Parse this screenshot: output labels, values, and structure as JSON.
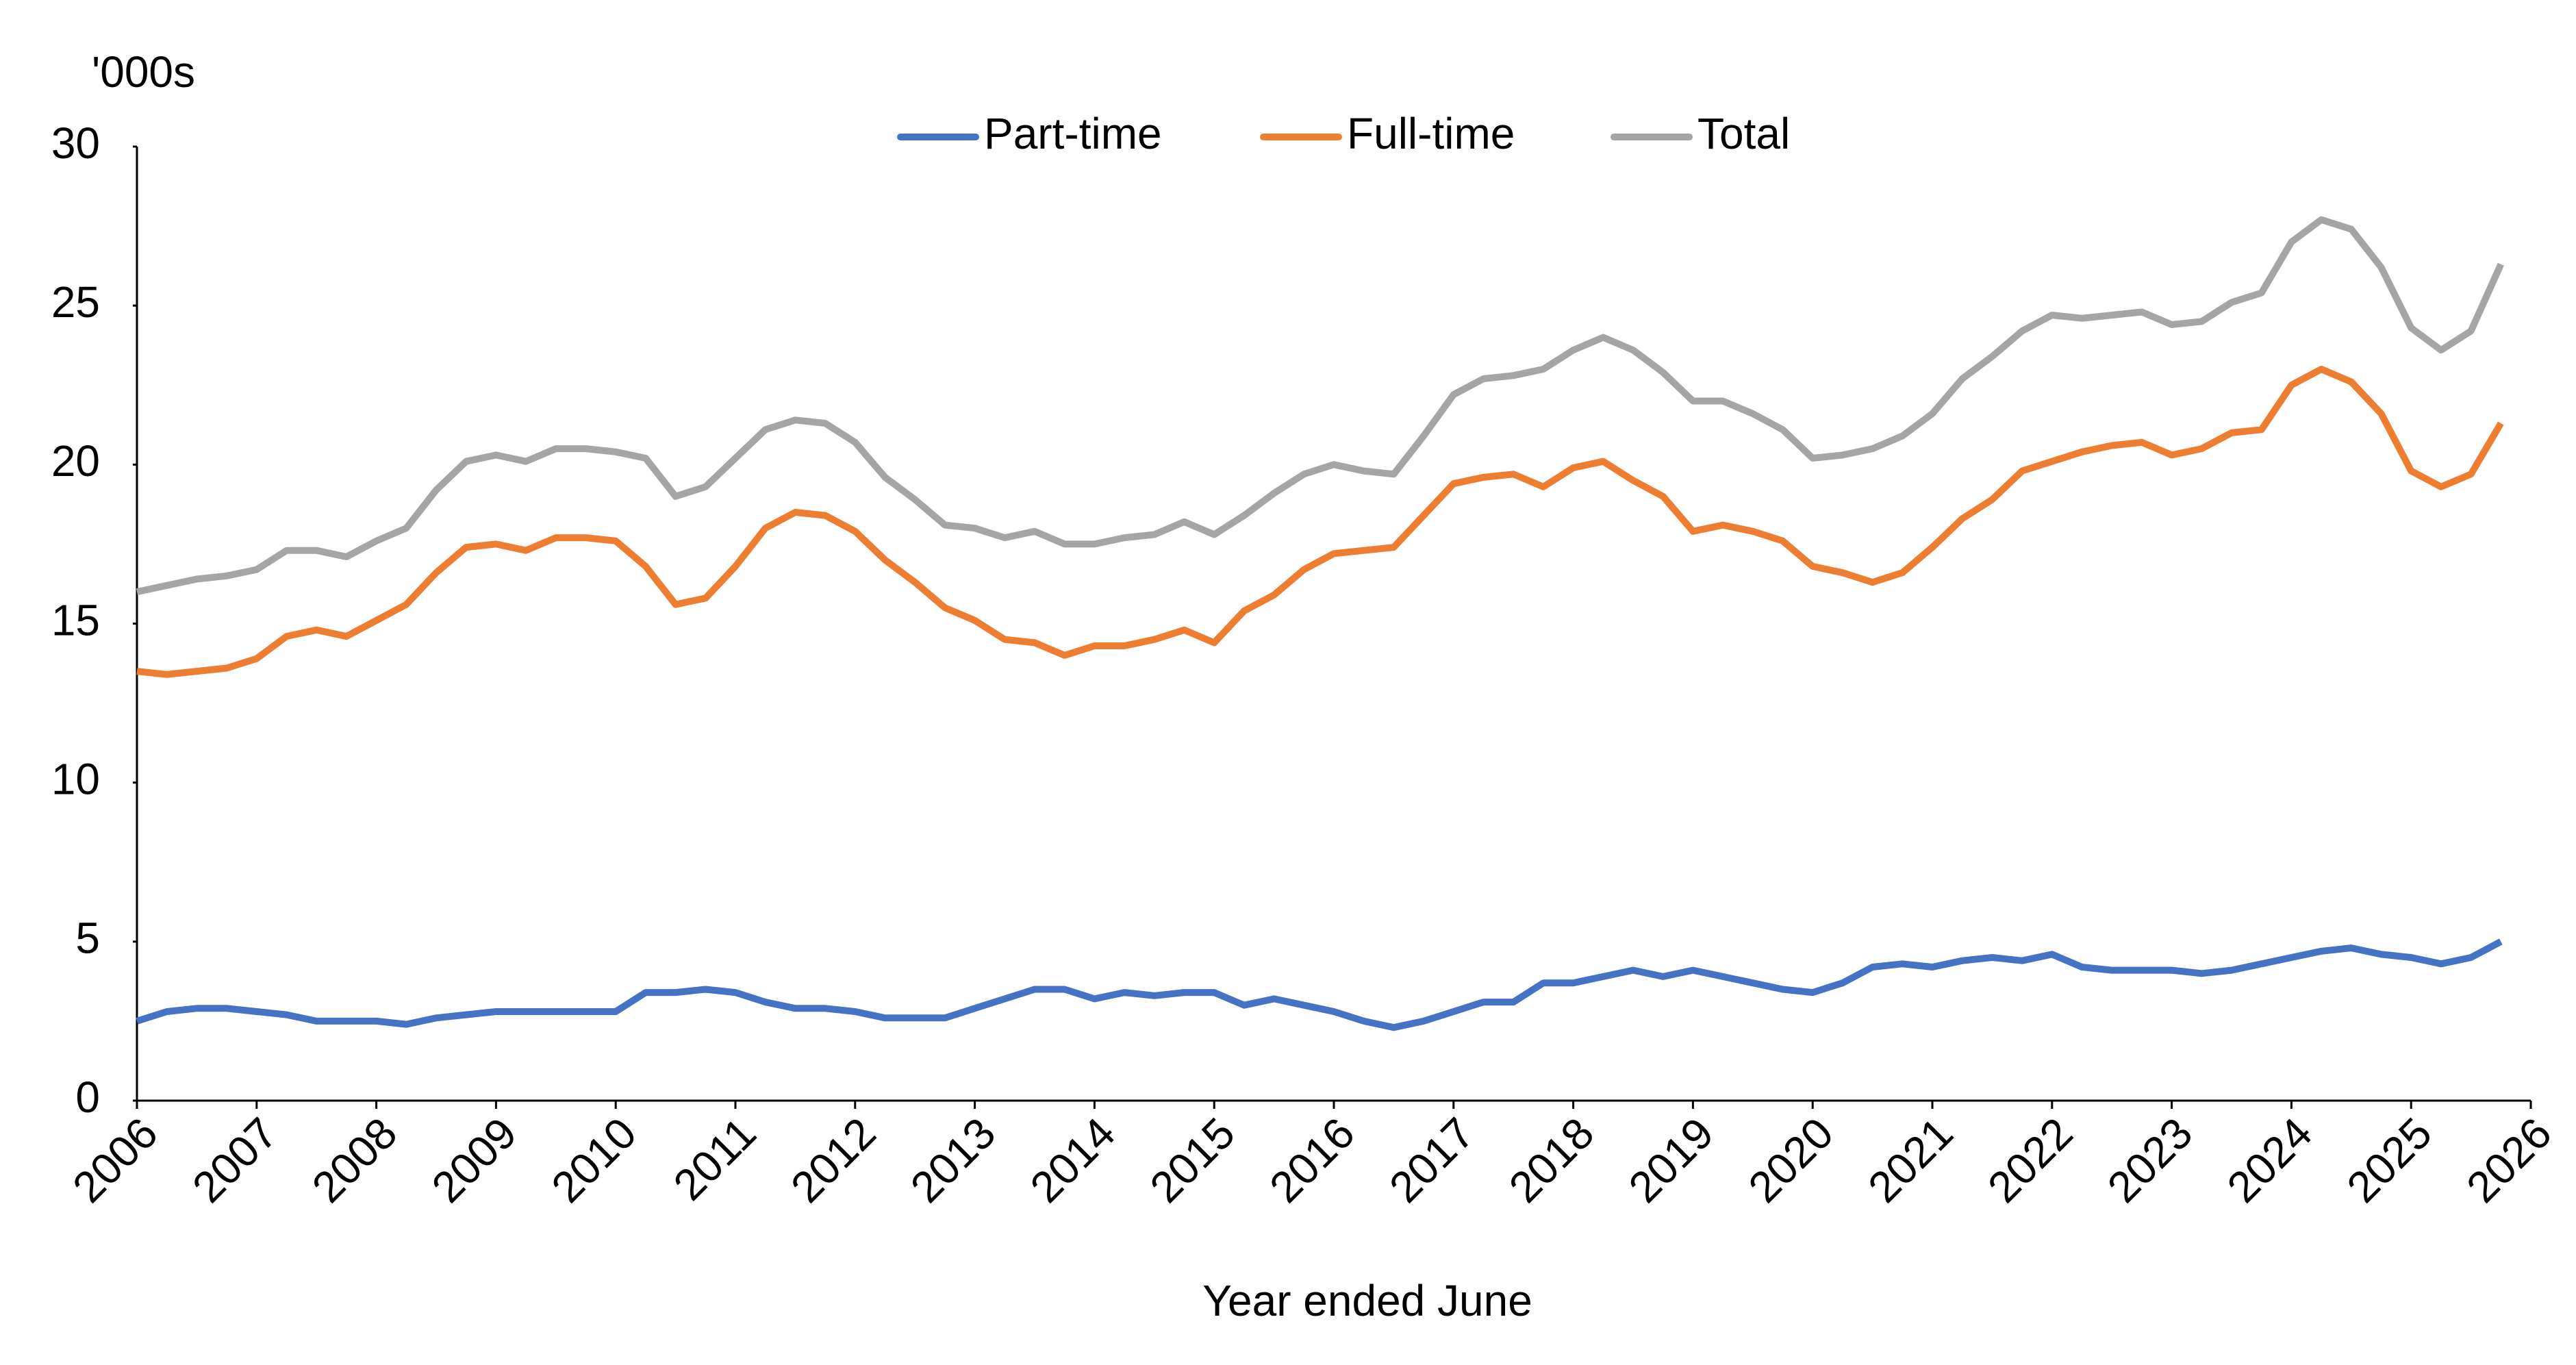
{
  "chart_data": {
    "type": "line",
    "y_axis_unit": "'000s",
    "x_label": "Year ended June",
    "x": [
      2006,
      2006.25,
      2006.5,
      2006.75,
      2007,
      2007.25,
      2007.5,
      2007.75,
      2008,
      2008.25,
      2008.5,
      2008.75,
      2009,
      2009.25,
      2009.5,
      2009.75,
      2010,
      2010.25,
      2010.5,
      2010.75,
      2011,
      2011.25,
      2011.5,
      2011.75,
      2012,
      2012.25,
      2012.5,
      2012.75,
      2013,
      2013.25,
      2013.5,
      2013.75,
      2014,
      2014.25,
      2014.5,
      2014.75,
      2015,
      2015.25,
      2015.5,
      2015.75,
      2016,
      2016.25,
      2016.5,
      2016.75,
      2017,
      2017.25,
      2017.5,
      2017.75,
      2018,
      2018.25,
      2018.5,
      2018.75,
      2019,
      2019.25,
      2019.5,
      2019.75,
      2020,
      2020.25,
      2020.5,
      2020.75,
      2021,
      2021.25,
      2021.5,
      2021.75,
      2022,
      2022.25,
      2022.5,
      2022.75,
      2023,
      2023.25,
      2023.5,
      2023.75,
      2024,
      2024.25,
      2024.5,
      2024.75,
      2025,
      2025.25,
      2025.5,
      2025.75
    ],
    "series": [
      {
        "name": "Part-time",
        "color": "#4472c4",
        "values": [
          2.5,
          2.8,
          2.9,
          2.9,
          2.8,
          2.7,
          2.5,
          2.5,
          2.5,
          2.4,
          2.6,
          2.7,
          2.8,
          2.8,
          2.8,
          2.8,
          2.8,
          3.4,
          3.4,
          3.5,
          3.4,
          3.1,
          2.9,
          2.9,
          2.8,
          2.6,
          2.6,
          2.6,
          2.9,
          3.2,
          3.5,
          3.5,
          3.2,
          3.4,
          3.3,
          3.4,
          3.4,
          3.0,
          3.2,
          3.0,
          2.8,
          2.5,
          2.3,
          2.5,
          2.8,
          3.1,
          3.1,
          3.7,
          3.7,
          3.9,
          4.1,
          3.9,
          4.1,
          3.9,
          3.7,
          3.5,
          3.4,
          3.7,
          4.2,
          4.3,
          4.2,
          4.4,
          4.5,
          4.4,
          4.6,
          4.2,
          4.1,
          4.1,
          4.1,
          4.0,
          4.1,
          4.3,
          4.5,
          4.7,
          4.8,
          4.6,
          4.5,
          4.3,
          4.5,
          5.0
        ]
      },
      {
        "name": "Full-time",
        "color": "#ed7d31",
        "values": [
          13.5,
          13.4,
          13.5,
          13.6,
          13.9,
          14.6,
          14.8,
          14.6,
          15.1,
          15.6,
          16.6,
          17.4,
          17.5,
          17.3,
          17.7,
          17.7,
          17.6,
          16.8,
          15.6,
          15.8,
          16.8,
          18.0,
          18.5,
          18.4,
          17.9,
          17.0,
          16.3,
          15.5,
          15.1,
          14.5,
          14.4,
          14.0,
          14.3,
          14.3,
          14.5,
          14.8,
          14.4,
          15.4,
          15.9,
          16.7,
          17.2,
          17.3,
          17.4,
          18.4,
          19.4,
          19.6,
          19.7,
          19.3,
          19.9,
          20.1,
          19.5,
          19.0,
          17.9,
          18.1,
          17.9,
          17.6,
          16.8,
          16.6,
          16.3,
          16.6,
          17.4,
          18.3,
          18.9,
          19.8,
          20.1,
          20.4,
          20.6,
          20.7,
          20.3,
          20.5,
          21.0,
          21.1,
          22.5,
          23.0,
          22.6,
          21.6,
          19.8,
          19.3,
          19.7,
          21.3
        ]
      },
      {
        "name": "Total",
        "color": "#a5a5a5",
        "values": [
          16.0,
          16.2,
          16.4,
          16.5,
          16.7,
          17.3,
          17.3,
          17.1,
          17.6,
          18.0,
          19.2,
          20.1,
          20.3,
          20.1,
          20.5,
          20.5,
          20.4,
          20.2,
          19.0,
          19.3,
          20.2,
          21.1,
          21.4,
          21.3,
          20.7,
          19.6,
          18.9,
          18.1,
          18.0,
          17.7,
          17.9,
          17.5,
          17.5,
          17.7,
          17.8,
          18.2,
          17.8,
          18.4,
          19.1,
          19.7,
          20.0,
          19.8,
          19.7,
          20.9,
          22.2,
          22.7,
          22.8,
          23.0,
          23.6,
          24.0,
          23.6,
          22.9,
          22.0,
          22.0,
          21.6,
          21.1,
          20.2,
          20.3,
          20.5,
          20.9,
          21.6,
          22.7,
          23.4,
          24.2,
          24.7,
          24.6,
          24.7,
          24.8,
          24.4,
          24.5,
          25.1,
          25.4,
          27.0,
          27.7,
          27.4,
          26.2,
          24.3,
          23.6,
          24.2,
          26.3
        ]
      }
    ],
    "xlim": [
      2006,
      2026
    ],
    "xticks": [
      2006,
      2007,
      2008,
      2009,
      2010,
      2011,
      2012,
      2013,
      2014,
      2015,
      2016,
      2017,
      2018,
      2019,
      2020,
      2021,
      2022,
      2023,
      2024,
      2025,
      2026
    ],
    "ylim": [
      0,
      30
    ],
    "yticks": [
      0,
      5,
      10,
      15,
      20,
      25,
      30
    ],
    "grid": false,
    "legend": "top"
  }
}
